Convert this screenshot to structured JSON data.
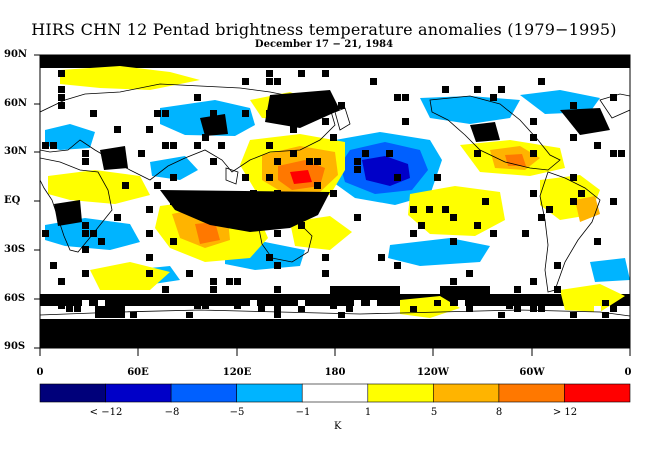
{
  "title": "HIRS CHN 12 Pentad brightness temperature anomalies (1979−1995)",
  "subtitle": "December 17 − 21, 1984",
  "y_ticks": [
    "90N",
    "60N",
    "30N",
    "EQ",
    "30S",
    "60S",
    "90S"
  ],
  "x_ticks": [
    "0",
    "60E",
    "120E",
    "180",
    "120W",
    "60W",
    "0"
  ],
  "colorbar": {
    "unit": "K",
    "labels": [
      "< −12",
      "−8",
      "−5",
      "−1",
      "1",
      "5",
      "8",
      "> 12"
    ],
    "colors": [
      "#00007a",
      "#0000c8",
      "#0060ff",
      "#00b4ff",
      "#ffffff",
      "#ffff00",
      "#ffb400",
      "#ff7800",
      "#ff0000"
    ]
  },
  "colors": {
    "missing": "#000000",
    "background": "#ffffff"
  }
}
